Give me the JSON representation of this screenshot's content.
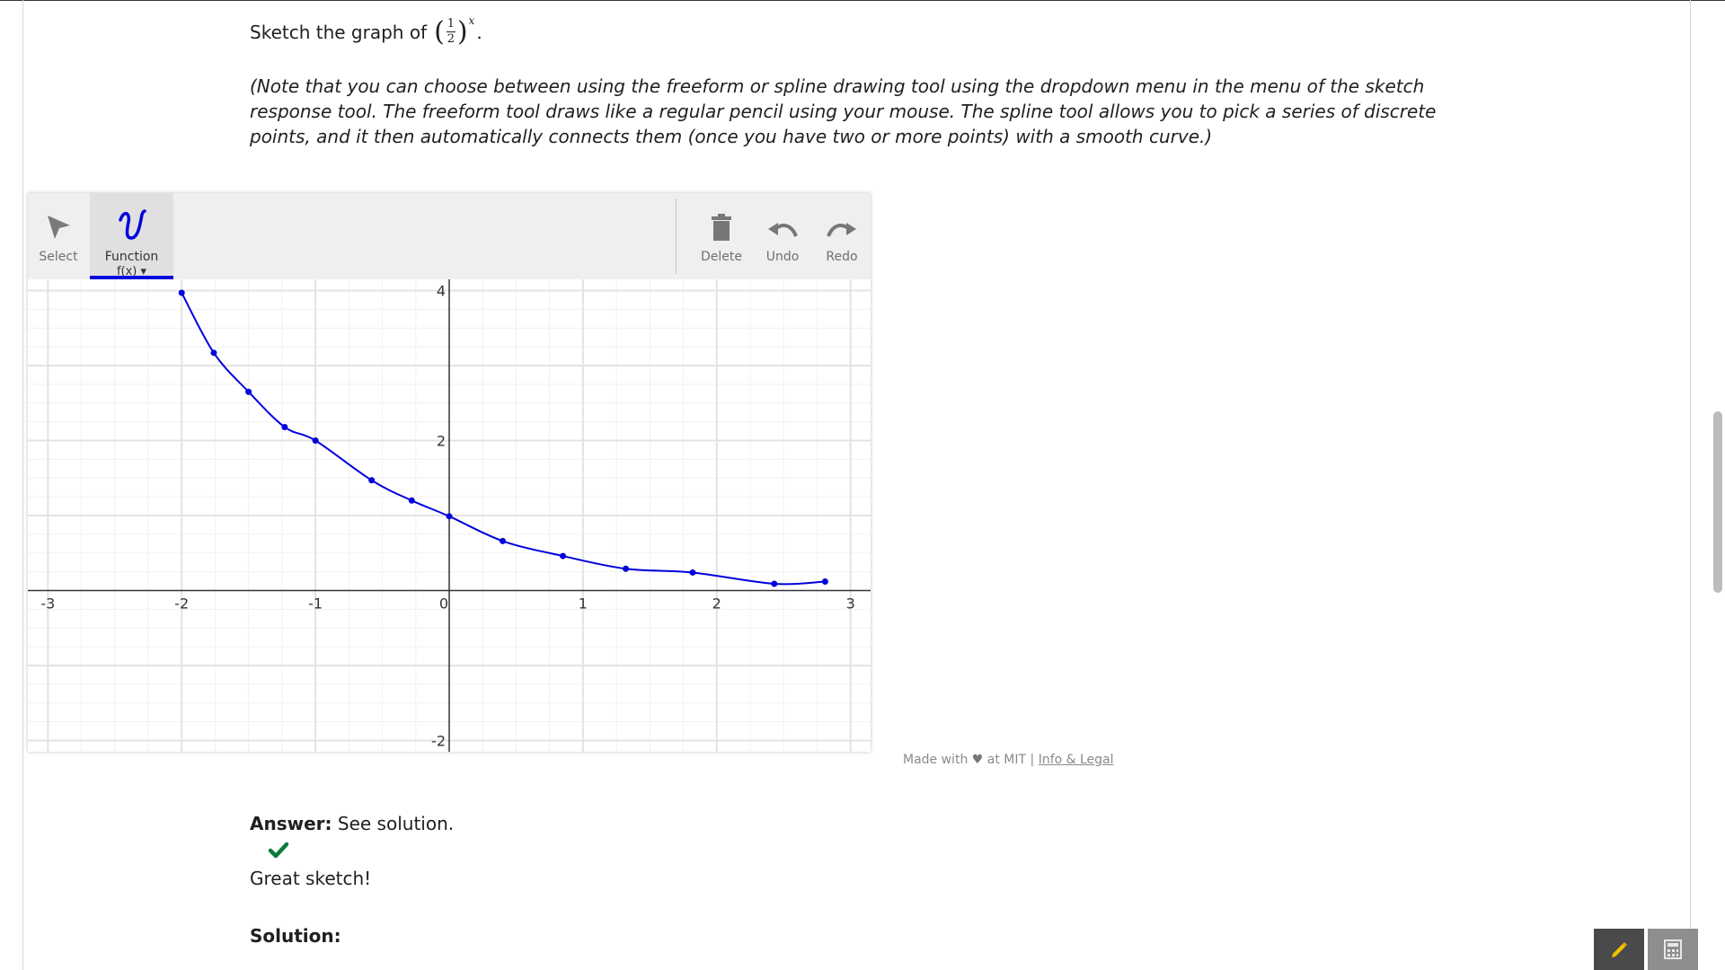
{
  "prompt": {
    "lead": "Sketch the graph of",
    "math_numerator": "1",
    "math_denominator": "2",
    "math_exponent": "x",
    "trailing": "."
  },
  "note": "(Note that you can choose between using the freeform or spline drawing tool using the dropdown menu in the menu of the sketch response tool. The freeform tool draws like a regular pencil using your mouse. The spline tool allows you to pick a series of discrete points, and it then automatically connects them (once you have two or more points) with a smooth curve.)",
  "toolbar": {
    "select_label": "Select",
    "function_label": "Function",
    "function_sub": "f(x) ▾",
    "delete_label": "Delete",
    "undo_label": "Undo",
    "redo_label": "Redo",
    "active_color": "#0000dd"
  },
  "chart_data": {
    "type": "line",
    "xlim": [
      -3.15,
      3.15
    ],
    "ylim": [
      -2.15,
      4.15
    ],
    "x_ticks": [
      "-3",
      "-2",
      "-1",
      "0",
      "1",
      "2",
      "3"
    ],
    "y_ticks": [
      "4",
      "2",
      "-2"
    ],
    "grid": true,
    "series": [
      {
        "color": "#0000dd",
        "x": [
          -2.0,
          -1.76,
          -1.5,
          -1.23,
          -1.0,
          -0.58,
          -0.28,
          0.0,
          0.4,
          0.85,
          1.32,
          1.82,
          2.43,
          2.81
        ],
        "y": [
          3.97,
          3.17,
          2.65,
          2.18,
          2.0,
          1.47,
          1.2,
          0.99,
          0.66,
          0.46,
          0.29,
          0.24,
          0.09,
          0.12
        ]
      }
    ]
  },
  "footer": {
    "made_with": "Made with",
    "at_mit": "at MIT |",
    "link": "Info & Legal"
  },
  "answer": {
    "label": "Answer:",
    "text": "See solution."
  },
  "feedback": "Great sketch!",
  "solution_label": "Solution:",
  "icons": [
    "arrow-select-icon",
    "function-squiggle-icon",
    "trash-icon",
    "undo-icon",
    "redo-icon",
    "check-icon",
    "pencil-icon",
    "calculator-icon"
  ]
}
